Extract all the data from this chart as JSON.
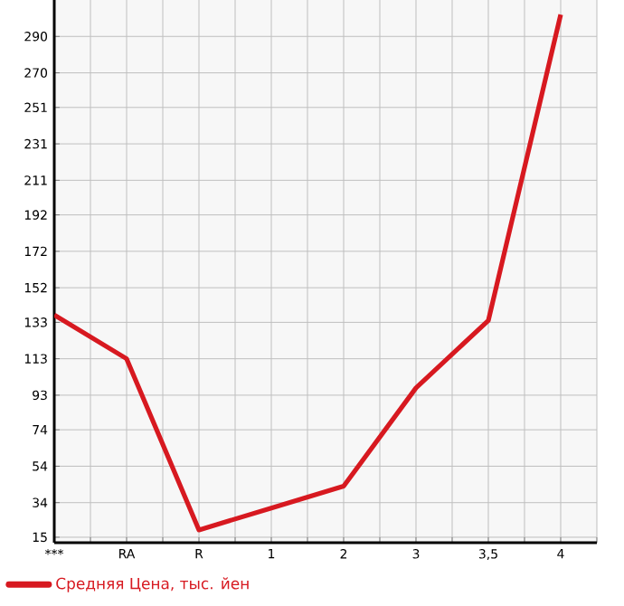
{
  "chart_data": {
    "type": "line",
    "categories": [
      "***",
      "RA",
      "R",
      "1",
      "2",
      "3",
      "3,5",
      "4"
    ],
    "series": [
      {
        "name": "Средняя Цена, тыс. йен",
        "color": "#d71920",
        "values": [
          137,
          113,
          19,
          31,
          43,
          97,
          134,
          302
        ]
      }
    ],
    "ylim": [
      12,
      310
    ],
    "yticks": [
      15,
      34,
      54,
      74,
      93,
      113,
      133,
      152,
      172,
      192,
      211,
      231,
      251,
      270,
      290
    ],
    "grid": true,
    "legend": "bottom",
    "marker": "none",
    "line_style": "solid"
  }
}
